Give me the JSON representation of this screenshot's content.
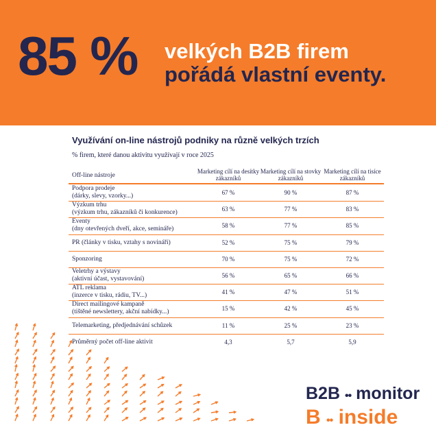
{
  "banner": {
    "big_stat": "85 %",
    "line1": "velkých B2B firem",
    "line2": "pořádá vlastní eventy."
  },
  "chart_data": {
    "type": "table",
    "title": "Využívání on-line nástrojů podniky na různě velkých trzích",
    "subtitle": "% firem, které danou aktivitu využívají v roce 2025",
    "columns": [
      "Off-line nástroje",
      "Marketing cílí na desítky zákazníků",
      "Marketing cílí na stovky zákazníků",
      "Marketing cílí na tisíce zákazníků"
    ],
    "rows": [
      {
        "label": "Podpora prodeje",
        "sublabel": "(dárky, slevy, vzorky...)",
        "values": [
          "67 %",
          "90 %",
          "87 %"
        ]
      },
      {
        "label": "Výzkum trhu",
        "sublabel": "(výzkum trhu, zákazníků či konkurence)",
        "values": [
          "63 %",
          "77 %",
          "83 %"
        ]
      },
      {
        "label": "Eventy",
        "sublabel": "(dny otevřených dveří, akce, semináře)",
        "values": [
          "58 %",
          "77 %",
          "85 %"
        ]
      },
      {
        "label": "PR (články v tisku, vztahy s novináři)",
        "sublabel": "",
        "values": [
          "52 %",
          "75 %",
          "79 %"
        ]
      },
      {
        "label": "Sponzoring",
        "sublabel": "",
        "values": [
          "70 %",
          "75 %",
          "72 %"
        ]
      },
      {
        "label": "Veletrhy a výstavy",
        "sublabel": "(aktivní účast, vystavování)",
        "values": [
          "56 %",
          "65 %",
          "66 %"
        ]
      },
      {
        "label": "ATL reklama",
        "sublabel": "(inzerce v tisku, rádiu, TV...)",
        "values": [
          "41 %",
          "47 %",
          "51 %"
        ]
      },
      {
        "label": "Direct mailingové kampaně",
        "sublabel": "(tištěné newslettery, akční nabídky...)",
        "values": [
          "15 %",
          "42 %",
          "45 %"
        ]
      },
      {
        "label": "Telemarketing, předjednávání schůzek",
        "sublabel": "",
        "values": [
          "11 %",
          "25 %",
          "23 %"
        ]
      }
    ],
    "summary": {
      "label": "Průměrný počet off-line aktivit",
      "values": [
        "4,3",
        "5,7",
        "5,9"
      ]
    }
  },
  "brand": {
    "logo_top_a": "B2B",
    "logo_top_b": "monitor",
    "logo_bottom_a": "B",
    "logo_bottom_b": "inside",
    "dots": "••"
  },
  "colors": {
    "orange": "#f57c2a",
    "navy": "#23264f",
    "white": "#ffffff"
  }
}
